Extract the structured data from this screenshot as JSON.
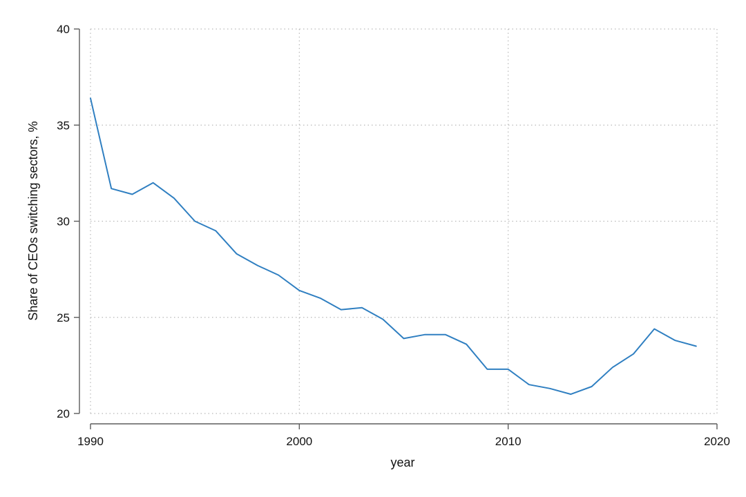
{
  "chart_data": {
    "type": "line",
    "xlabel": "year",
    "ylabel": "Share of CEOs switching sectors, %",
    "xlim": [
      1990,
      2020
    ],
    "ylim": [
      20,
      40
    ],
    "xticks": [
      1990,
      2000,
      2010,
      2020
    ],
    "yticks": [
      20,
      25,
      30,
      35,
      40
    ],
    "grid": true,
    "legend": "none",
    "series": [
      {
        "color": "#2f7fc1",
        "x": [
          1990,
          1991,
          1992,
          1993,
          1994,
          1995,
          1996,
          1997,
          1998,
          1999,
          2000,
          2001,
          2002,
          2003,
          2004,
          2005,
          2006,
          2007,
          2008,
          2009,
          2010,
          2011,
          2012,
          2013,
          2014,
          2015,
          2016,
          2017,
          2018,
          2019
        ],
        "y": [
          36.4,
          31.7,
          31.4,
          32.0,
          31.2,
          30.0,
          29.5,
          28.3,
          27.7,
          27.2,
          26.4,
          26.0,
          25.4,
          25.5,
          24.9,
          23.9,
          24.1,
          24.1,
          23.6,
          22.3,
          22.3,
          21.5,
          21.3,
          21.0,
          21.4,
          22.4,
          23.1,
          24.4,
          23.8,
          23.5
        ]
      }
    ]
  }
}
